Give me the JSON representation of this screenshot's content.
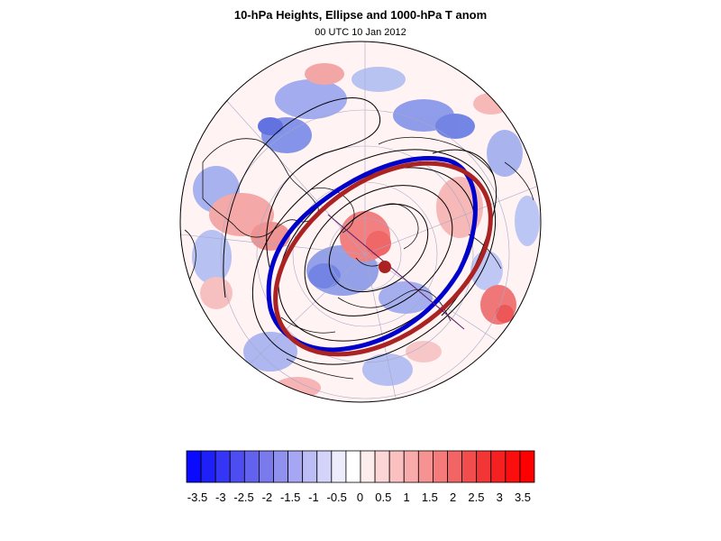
{
  "title": "10-hPa Heights, Ellipse and 1000-hPa T anom",
  "subtitle": "00 UTC 10 Jan 2012",
  "colorbar": {
    "tick_labels": [
      "-3.5",
      "-3",
      "-2.5",
      "-2",
      "-1.5",
      "-1",
      "-0.5",
      "0",
      "0.5",
      "1",
      "1.5",
      "2",
      "2.5",
      "3",
      "3.5"
    ],
    "colors": [
      "#0a0aff",
      "#1f1ff8",
      "#3535f5",
      "#4d4df2",
      "#6262ee",
      "#7a7aec",
      "#9090ee",
      "#a6a6f2",
      "#bdbdf6",
      "#d4d4fa",
      "#ececfd",
      "#ffffff",
      "#fdecec",
      "#fcd6d6",
      "#fbc0c0",
      "#f9aaaa",
      "#f79292",
      "#f57b7b",
      "#f36464",
      "#f14d4d",
      "#f23636",
      "#f52020",
      "#fa0e0e",
      "#ff0000"
    ]
  },
  "map": {
    "projection": "north-polar-orthographic",
    "ellipse_colors": {
      "observed": "#0000cc",
      "fitted": "#aa2222",
      "centroid": "#aa2222"
    },
    "contour_color": "#000000"
  }
}
